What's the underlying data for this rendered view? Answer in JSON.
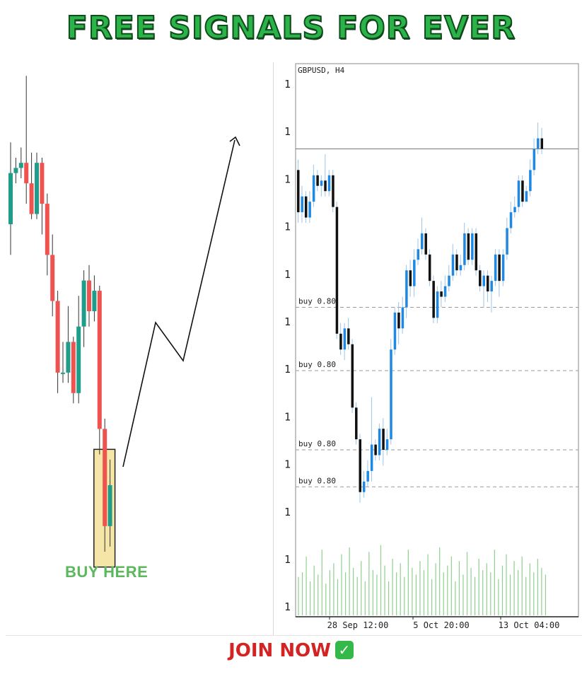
{
  "header": {
    "title": "FREE SIGNALS FOR EVER"
  },
  "left_panel": {
    "annotation": "BUY HERE"
  },
  "footer": {
    "cta": "JOIN NOW",
    "cta_icon": "check-mark-icon"
  },
  "colors": {
    "title_green": "#2bb34a",
    "bull_candle": "#1e9e8a",
    "bear_candle": "#ef5350",
    "right_up": "#1e88e5",
    "right_down": "#111111",
    "volume": "#8fcf8f",
    "highlight_box": "#f5e6a8",
    "cta_red": "#d42323"
  },
  "chart_data": [
    {
      "type": "candlestick",
      "title": "",
      "candles": [
        {
          "o": 62,
          "c": 72,
          "h": 78,
          "l": 56
        },
        {
          "o": 72,
          "c": 73,
          "h": 75,
          "l": 70
        },
        {
          "o": 73,
          "c": 74,
          "h": 77,
          "l": 71
        },
        {
          "o": 74,
          "c": 70,
          "h": 91,
          "l": 66
        },
        {
          "o": 70,
          "c": 64,
          "h": 76,
          "l": 63
        },
        {
          "o": 64,
          "c": 74,
          "h": 76,
          "l": 63
        },
        {
          "o": 74,
          "c": 66,
          "h": 75,
          "l": 60
        },
        {
          "o": 66,
          "c": 56,
          "h": 68,
          "l": 52
        },
        {
          "o": 56,
          "c": 47,
          "h": 60,
          "l": 44
        },
        {
          "o": 47,
          "c": 33,
          "h": 49,
          "l": 29
        },
        {
          "o": 33,
          "c": 33,
          "h": 39,
          "l": 31
        },
        {
          "o": 33,
          "c": 39,
          "h": 46,
          "l": 31
        },
        {
          "o": 39,
          "c": 29,
          "h": 40,
          "l": 27
        },
        {
          "o": 29,
          "c": 42,
          "h": 48,
          "l": 27
        },
        {
          "o": 42,
          "c": 51,
          "h": 53,
          "l": 38
        },
        {
          "o": 51,
          "c": 45,
          "h": 54,
          "l": 42
        },
        {
          "o": 45,
          "c": 49,
          "h": 52,
          "l": 43
        },
        {
          "o": 49,
          "c": 22,
          "h": 50,
          "l": 17
        },
        {
          "o": 22,
          "c": 3,
          "h": 24,
          "l": -2
        },
        {
          "o": 3,
          "c": 11,
          "h": 16,
          "l": -1
        }
      ]
    },
    {
      "type": "candlestick",
      "title": "GBPUSD, H4",
      "y_tick_labels": [
        "1",
        "1",
        "1",
        "1",
        "1",
        "1",
        "1",
        "1",
        "1",
        "1",
        "1",
        "1"
      ],
      "x_tick_labels": [
        "28 Sep 12:00",
        "5 Oct 20:00",
        "13 Oct 04:00"
      ],
      "reference_lines": [
        {
          "label": "buy 0.80",
          "y": 56
        },
        {
          "label": "buy 0.80",
          "y": 44
        },
        {
          "label": "buy 0.80",
          "y": 29
        },
        {
          "label": "buy 0.80",
          "y": 22
        }
      ],
      "current_price": 86,
      "candles": [
        {
          "o": 82,
          "c": 74,
          "h": 84,
          "l": 72
        },
        {
          "o": 74,
          "c": 77,
          "h": 79,
          "l": 72
        },
        {
          "o": 77,
          "c": 73,
          "h": 78,
          "l": 72
        },
        {
          "o": 73,
          "c": 76,
          "h": 78,
          "l": 72
        },
        {
          "o": 76,
          "c": 81,
          "h": 83,
          "l": 75
        },
        {
          "o": 81,
          "c": 79,
          "h": 82,
          "l": 78
        },
        {
          "o": 79,
          "c": 80,
          "h": 81,
          "l": 77
        },
        {
          "o": 80,
          "c": 78,
          "h": 85,
          "l": 77
        },
        {
          "o": 78,
          "c": 81,
          "h": 82,
          "l": 77
        },
        {
          "o": 81,
          "c": 75,
          "h": 82,
          "l": 74
        },
        {
          "o": 75,
          "c": 51,
          "h": 76,
          "l": 50
        },
        {
          "o": 51,
          "c": 48,
          "h": 53,
          "l": 47
        },
        {
          "o": 48,
          "c": 52,
          "h": 53,
          "l": 46
        },
        {
          "o": 52,
          "c": 49,
          "h": 54,
          "l": 48
        },
        {
          "o": 49,
          "c": 37,
          "h": 50,
          "l": 36
        },
        {
          "o": 37,
          "c": 31,
          "h": 38,
          "l": 30
        },
        {
          "o": 31,
          "c": 21,
          "h": 32,
          "l": 19
        },
        {
          "o": 21,
          "c": 23,
          "h": 25,
          "l": 20
        },
        {
          "o": 23,
          "c": 25,
          "h": 27,
          "l": 22
        },
        {
          "o": 25,
          "c": 30,
          "h": 39,
          "l": 23
        },
        {
          "o": 30,
          "c": 28,
          "h": 31,
          "l": 27
        },
        {
          "o": 28,
          "c": 33,
          "h": 34,
          "l": 27
        },
        {
          "o": 33,
          "c": 29,
          "h": 35,
          "l": 26
        },
        {
          "o": 29,
          "c": 31,
          "h": 33,
          "l": 28
        },
        {
          "o": 31,
          "c": 48,
          "h": 50,
          "l": 30
        },
        {
          "o": 48,
          "c": 55,
          "h": 56,
          "l": 47
        },
        {
          "o": 55,
          "c": 52,
          "h": 57,
          "l": 49
        },
        {
          "o": 52,
          "c": 56,
          "h": 58,
          "l": 51
        },
        {
          "o": 56,
          "c": 63,
          "h": 64,
          "l": 54
        },
        {
          "o": 63,
          "c": 60,
          "h": 65,
          "l": 58
        },
        {
          "o": 60,
          "c": 65,
          "h": 67,
          "l": 58
        },
        {
          "o": 65,
          "c": 67,
          "h": 69,
          "l": 64
        },
        {
          "o": 67,
          "c": 70,
          "h": 73,
          "l": 66
        },
        {
          "o": 70,
          "c": 66,
          "h": 71,
          "l": 65
        },
        {
          "o": 66,
          "c": 61,
          "h": 67,
          "l": 60
        },
        {
          "o": 61,
          "c": 54,
          "h": 62,
          "l": 53
        },
        {
          "o": 54,
          "c": 59,
          "h": 60,
          "l": 53
        },
        {
          "o": 59,
          "c": 58,
          "h": 61,
          "l": 56
        },
        {
          "o": 58,
          "c": 60,
          "h": 62,
          "l": 57
        },
        {
          "o": 60,
          "c": 62,
          "h": 64,
          "l": 59
        },
        {
          "o": 62,
          "c": 66,
          "h": 68,
          "l": 61
        },
        {
          "o": 66,
          "c": 63,
          "h": 67,
          "l": 62
        },
        {
          "o": 63,
          "c": 64,
          "h": 66,
          "l": 62
        },
        {
          "o": 64,
          "c": 70,
          "h": 72,
          "l": 63
        },
        {
          "o": 70,
          "c": 65,
          "h": 71,
          "l": 64
        },
        {
          "o": 65,
          "c": 70,
          "h": 71,
          "l": 64
        },
        {
          "o": 70,
          "c": 63,
          "h": 71,
          "l": 62
        },
        {
          "o": 63,
          "c": 60,
          "h": 64,
          "l": 59
        },
        {
          "o": 60,
          "c": 62,
          "h": 63,
          "l": 56
        },
        {
          "o": 62,
          "c": 59,
          "h": 63,
          "l": 57
        },
        {
          "o": 59,
          "c": 61,
          "h": 62,
          "l": 55
        },
        {
          "o": 61,
          "c": 66,
          "h": 67,
          "l": 60
        },
        {
          "o": 66,
          "c": 61,
          "h": 67,
          "l": 58
        },
        {
          "o": 61,
          "c": 66,
          "h": 67,
          "l": 60
        },
        {
          "o": 66,
          "c": 71,
          "h": 73,
          "l": 65
        },
        {
          "o": 71,
          "c": 74,
          "h": 76,
          "l": 70
        },
        {
          "o": 74,
          "c": 75,
          "h": 77,
          "l": 73
        },
        {
          "o": 75,
          "c": 80,
          "h": 81,
          "l": 74
        },
        {
          "o": 80,
          "c": 76,
          "h": 81,
          "l": 75
        },
        {
          "o": 76,
          "c": 78,
          "h": 79,
          "l": 76
        },
        {
          "o": 78,
          "c": 82,
          "h": 84,
          "l": 77
        },
        {
          "o": 82,
          "c": 86,
          "h": 88,
          "l": 81
        },
        {
          "o": 86,
          "c": 88,
          "h": 91,
          "l": 85
        },
        {
          "o": 88,
          "c": 86,
          "h": 90,
          "l": 85
        }
      ],
      "volume": [
        34,
        38,
        52,
        30,
        44,
        36,
        58,
        28,
        40,
        46,
        32,
        54,
        38,
        60,
        42,
        34,
        48,
        30,
        56,
        40,
        36,
        62,
        44,
        30,
        50,
        38,
        46,
        34,
        58,
        42,
        36,
        48,
        40,
        54,
        32,
        46,
        60,
        38,
        44,
        52,
        30,
        48,
        36,
        56,
        42,
        34,
        50,
        40,
        46,
        38,
        58,
        32,
        44,
        54,
        36,
        48,
        40,
        52,
        34,
        46,
        38,
        50,
        42,
        36
      ]
    }
  ]
}
